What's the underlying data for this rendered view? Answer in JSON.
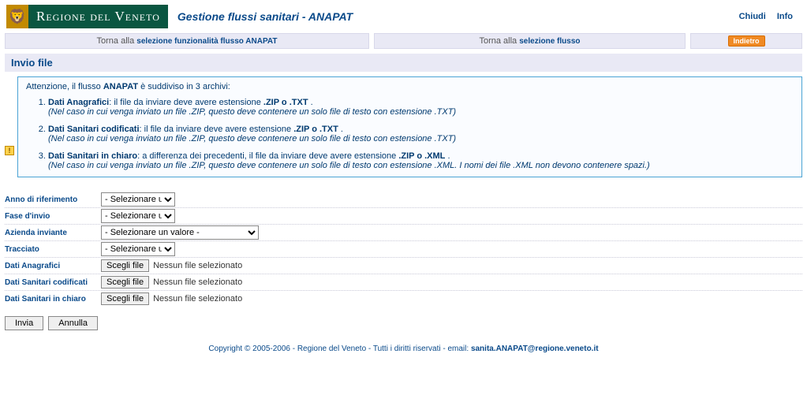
{
  "header": {
    "region_name": "Regione del Veneto",
    "app_title": "Gestione flussi sanitari - ANAPAT",
    "links": {
      "close": "Chiudi",
      "info": "Info"
    }
  },
  "nav": {
    "cell1_prefix": "Torna alla ",
    "cell1_link": "selezione funzionalità flusso ANAPAT",
    "cell2_prefix": "Torna alla ",
    "cell2_link": "selezione flusso",
    "indietro": "Indietro"
  },
  "page_title": "Invio file",
  "infobox": {
    "intro_prefix": "Attenzione, il flusso ",
    "intro_bold": "ANAPAT",
    "intro_suffix": " è suddiviso in 3 archivi:",
    "items": [
      {
        "title_bold": "Dati Anagrafici",
        "title_rest": ": il file da inviare deve avere estensione ",
        "ext_bold": ".ZIP o .TXT",
        "title_end": " .",
        "note": "(Nel caso in cui venga inviato un file .ZIP, questo deve contenere un solo file di testo con estensione .TXT)"
      },
      {
        "title_bold": "Dati Sanitari codificati",
        "title_rest": ": il file da inviare deve avere estensione ",
        "ext_bold": ".ZIP o .TXT",
        "title_end": " .",
        "note": "(Nel caso in cui venga inviato un file .ZIP, questo deve contenere un solo file di testo con estensione .TXT)"
      },
      {
        "title_bold": "Dati Sanitari in chiaro",
        "title_rest": ": a differenza dei precedenti, il file da inviare deve avere estensione ",
        "ext_bold": ".ZIP o .XML",
        "title_end": " .",
        "note": "(Nel caso in cui venga inviato un file .ZIP, questo deve contenere un solo file di testo con estensione .XML. I nomi dei file .XML non devono contenere spazi.)"
      }
    ]
  },
  "form": {
    "rows": {
      "anno": {
        "label": "Anno di riferimento",
        "value": "- Selezionare un valore -"
      },
      "fase": {
        "label": "Fase d'invio",
        "value": "- Selezionare un valore -"
      },
      "azienda": {
        "label": "Azienda inviante",
        "value": "- Selezionare un valore -"
      },
      "tracciato": {
        "label": "Tracciato",
        "value": "- Selezionare un valore -"
      }
    },
    "files": {
      "anagrafici": {
        "label": "Dati Anagrafici",
        "button": "Scegli file",
        "status": "Nessun file selezionato"
      },
      "sanitari_cod": {
        "label": "Dati Sanitari codificati",
        "button": "Scegli file",
        "status": "Nessun file selezionato"
      },
      "sanitari_chiaro": {
        "label": "Dati Sanitari in chiaro",
        "button": "Scegli file",
        "status": "Nessun file selezionato"
      }
    },
    "actions": {
      "submit": "Invia",
      "cancel": "Annulla"
    }
  },
  "footer": {
    "text": "Copyright © 2005-2006 - Regione del Veneto - Tutti i diritti riservati - email: ",
    "email": "sanita.ANAPAT@regione.veneto.it"
  }
}
